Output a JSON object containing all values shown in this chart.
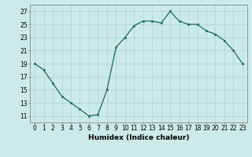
{
  "x": [
    0,
    1,
    2,
    3,
    4,
    5,
    6,
    7,
    8,
    9,
    10,
    11,
    12,
    13,
    14,
    15,
    16,
    17,
    18,
    19,
    20,
    21,
    22,
    23
  ],
  "y": [
    19,
    18,
    16,
    14,
    13,
    12,
    11,
    11.2,
    15,
    21.5,
    23,
    24.8,
    25.5,
    25.5,
    25.2,
    27,
    25.5,
    25,
    25,
    24,
    23.5,
    22.5,
    21,
    19
  ],
  "line_color": "#1a6b5a",
  "marker_color": "#1a6b5a",
  "bg_color": "#cceae8",
  "grid_color": "#aad4d0",
  "xlabel": "Humidex (Indice chaleur)",
  "xlim": [
    -0.5,
    23.5
  ],
  "ylim": [
    10,
    28
  ],
  "yticks": [
    11,
    13,
    15,
    17,
    19,
    21,
    23,
    25,
    27
  ],
  "xticks": [
    0,
    1,
    2,
    3,
    4,
    5,
    6,
    7,
    8,
    9,
    10,
    11,
    12,
    13,
    14,
    15,
    16,
    17,
    18,
    19,
    20,
    21,
    22,
    23
  ],
  "xlabel_fontsize": 6.5,
  "tick_fontsize": 5.5,
  "linewidth": 0.9,
  "markersize": 2.0
}
